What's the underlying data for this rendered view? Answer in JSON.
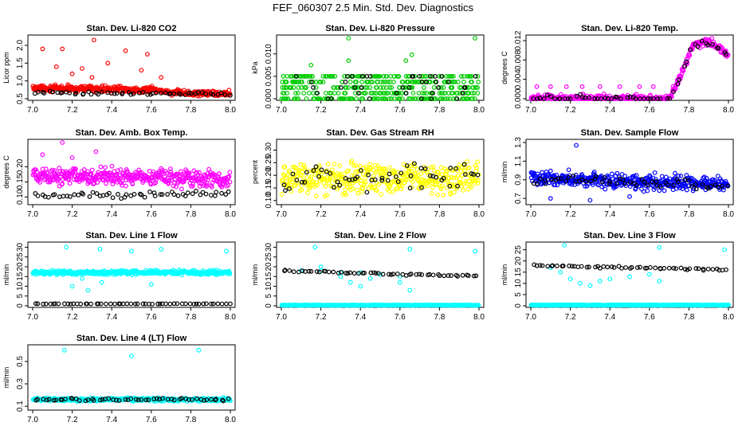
{
  "page_title": "FEF_060307  2.5 Min. Std. Dev. Diagnostics",
  "colors": {
    "red": "#ff0000",
    "green": "#00cc00",
    "magenta": "#ff00ff",
    "yellow": "#ffff00",
    "blue": "#0000ff",
    "cyan": "#00ffff",
    "black": "#000000"
  },
  "chart_data": [
    {
      "type": "scatter",
      "title": "Stan. Dev. Li-820 CO2",
      "ylabel": "Licor ppm",
      "xlim": [
        7.0,
        8.0
      ],
      "ylim": [
        0.5,
        2.2
      ],
      "x_ticks": [
        "7.0",
        "7.2",
        "7.4",
        "7.6",
        "7.8",
        "8.0"
      ],
      "y_ticks": [
        {
          "v": 0.5,
          "label": "0.5"
        },
        {
          "v": 1.0,
          "label": "1.0"
        },
        {
          "v": 1.5,
          "label": "1.5"
        },
        {
          "v": 2.0,
          "label": "2.0"
        }
      ],
      "series": [
        {
          "name": "color",
          "color": "#ff0000",
          "profile": [
            [
              7.0,
              0.8
            ],
            [
              7.6,
              0.75
            ],
            [
              7.75,
              0.65
            ],
            [
              8.0,
              0.65
            ]
          ],
          "spread": 0.12,
          "outliers": [
            [
              7.05,
              1.9
            ],
            [
              7.15,
              1.9
            ],
            [
              7.31,
              2.15
            ],
            [
              7.47,
              1.85
            ],
            [
              7.58,
              1.75
            ],
            [
              7.25,
              1.35
            ],
            [
              7.38,
              1.5
            ],
            [
              7.2,
              1.2
            ],
            [
              7.12,
              1.4
            ],
            [
              7.55,
              1.3
            ],
            [
              7.3,
              1.1
            ],
            [
              7.65,
              1.1
            ]
          ]
        },
        {
          "name": "black",
          "color": "#000000",
          "profile": [
            [
              7.0,
              0.68
            ],
            [
              8.0,
              0.62
            ]
          ],
          "spread": 0.06
        }
      ]
    },
    {
      "type": "scatter",
      "title": "Stan. Dev. Li-820 Pressure",
      "ylabel": "kPa",
      "xlim": [
        7.0,
        8.0
      ],
      "ylim": [
        0.0,
        0.0135
      ],
      "x_ticks": [
        "7.0",
        "7.2",
        "7.4",
        "7.6",
        "7.8",
        "8.0"
      ],
      "y_ticks": [
        {
          "v": 0.0,
          "label": "0.000"
        },
        {
          "v": 0.005,
          "label": "0.005"
        },
        {
          "v": 0.01,
          "label": "0.010"
        }
      ],
      "series": [
        {
          "name": "color",
          "color": "#00cc00",
          "levels": [
            0.0,
            0.00125,
            0.0025,
            0.00375,
            0.005
          ],
          "outliers": [
            [
              7.34,
              0.0135
            ],
            [
              7.98,
              0.0135
            ],
            [
              7.34,
              0.0085
            ],
            [
              7.66,
              0.0098
            ],
            [
              7.63,
              0.0085
            ],
            [
              7.15,
              0.0075
            ]
          ]
        },
        {
          "name": "black",
          "color": "#000000",
          "levels": [
            0.0,
            0.00125,
            0.0025,
            0.00375,
            0.005
          ],
          "count": 40
        }
      ]
    },
    {
      "type": "scatter",
      "title": "Stan. Dev. Li-820 Temp.",
      "ylabel": "degrees C",
      "xlim": [
        7.0,
        8.0
      ],
      "ylim": [
        0.0,
        0.0125
      ],
      "x_ticks": [
        "7.0",
        "7.2",
        "7.4",
        "7.6",
        "7.8",
        "8.0"
      ],
      "y_ticks": [
        {
          "v": 0.0,
          "label": "0.000"
        },
        {
          "v": 0.004,
          "label": "0.004"
        },
        {
          "v": 0.008,
          "label": "0.008"
        },
        {
          "v": 0.012,
          "label": "0.012"
        }
      ],
      "series": [
        {
          "name": "color",
          "color": "#ff00ff",
          "profile": [
            [
              7.0,
              0.0
            ],
            [
              7.7,
              0.0
            ],
            [
              7.75,
              0.004
            ],
            [
              7.82,
              0.011
            ],
            [
              7.9,
              0.012
            ],
            [
              8.0,
              0.009
            ]
          ],
          "spread": 0.0012,
          "outliers": [
            [
              7.03,
              0.0025
            ],
            [
              7.1,
              0.0025
            ],
            [
              7.18,
              0.0025
            ],
            [
              7.26,
              0.0025
            ],
            [
              7.35,
              0.0025
            ],
            [
              7.45,
              0.0025
            ],
            [
              7.55,
              0.0025
            ],
            [
              7.62,
              0.0025
            ]
          ]
        },
        {
          "name": "black",
          "color": "#000000",
          "profile": [
            [
              7.0,
              0.0
            ],
            [
              7.7,
              0.0
            ],
            [
              7.75,
              0.004
            ],
            [
              7.82,
              0.011
            ],
            [
              7.9,
              0.012
            ],
            [
              8.0,
              0.0085
            ]
          ],
          "spread": 0.0012
        }
      ]
    },
    {
      "type": "scatter",
      "title": "Stan. Dev. Amb. Box Temp.",
      "ylabel": "degrees C",
      "xlim": [
        7.0,
        8.0
      ],
      "ylim": [
        0.08,
        0.28
      ],
      "x_ticks": [
        "7.0",
        "7.2",
        "7.4",
        "7.6",
        "7.8",
        "8.0"
      ],
      "y_ticks": [
        {
          "v": 0.1,
          "label": "0.10"
        },
        {
          "v": 0.15,
          "label": "0.15"
        },
        {
          "v": 0.2,
          "label": "0.20"
        }
      ],
      "series": [
        {
          "name": "color",
          "color": "#ff00ff",
          "profile": [
            [
              7.0,
              0.17
            ],
            [
              8.0,
              0.16
            ]
          ],
          "spread": 0.04,
          "outliers": [
            [
              7.15,
              0.28
            ],
            [
              7.05,
              0.24
            ],
            [
              7.32,
              0.25
            ],
            [
              7.2,
              0.23
            ]
          ]
        },
        {
          "name": "black",
          "color": "#000000",
          "profile": [
            [
              7.0,
              0.105
            ],
            [
              8.0,
              0.11
            ]
          ],
          "spread": 0.015
        }
      ]
    },
    {
      "type": "scatter",
      "title": "Stan. Dev. Gas Stream RH",
      "ylabel": "percent",
      "xlim": [
        7.0,
        8.0
      ],
      "ylim": [
        0.09,
        0.33
      ],
      "x_ticks": [
        "7.0",
        "7.2",
        "7.4",
        "7.6",
        "7.8",
        "8.0"
      ],
      "y_ticks": [
        {
          "v": 0.1,
          "label": "0.10"
        },
        {
          "v": 0.15,
          "label": "0.15"
        },
        {
          "v": 0.2,
          "label": "0.20"
        },
        {
          "v": 0.25,
          "label": "0.25"
        },
        {
          "v": 0.3,
          "label": "0.30"
        }
      ],
      "series": [
        {
          "name": "color",
          "color": "#ffff00",
          "profile": [
            [
              7.0,
              0.19
            ],
            [
              8.0,
              0.19
            ]
          ],
          "spread": 0.09
        },
        {
          "name": "black",
          "color": "#000000",
          "profile": [
            [
              7.0,
              0.19
            ],
            [
              8.0,
              0.19
            ]
          ],
          "spread": 0.08
        }
      ]
    },
    {
      "type": "scatter",
      "title": "Stan. Dev. Sample Flow",
      "ylabel": "ml/min",
      "xlim": [
        7.0,
        8.0
      ],
      "ylim": [
        0.65,
        1.3
      ],
      "x_ticks": [
        "7.0",
        "7.2",
        "7.4",
        "7.6",
        "7.8",
        "8.0"
      ],
      "y_ticks": [
        {
          "v": 0.7,
          "label": "0.7"
        },
        {
          "v": 0.9,
          "label": "0.9"
        },
        {
          "v": 1.1,
          "label": "1.1"
        },
        {
          "v": 1.3,
          "label": "1.3"
        }
      ],
      "series": [
        {
          "name": "color",
          "color": "#0000ff",
          "profile": [
            [
              7.0,
              0.92
            ],
            [
              8.0,
              0.85
            ]
          ],
          "spread": 0.12,
          "outliers": [
            [
              7.23,
              1.27
            ],
            [
              7.1,
              0.7
            ],
            [
              7.3,
              0.68
            ],
            [
              7.5,
              0.72
            ]
          ]
        },
        {
          "name": "black",
          "color": "#000000",
          "profile": [
            [
              7.0,
              0.9
            ],
            [
              8.0,
              0.85
            ]
          ],
          "spread": 0.08
        }
      ]
    },
    {
      "type": "scatter",
      "title": "Stan. Dev. Line 1 Flow",
      "ylabel": "ml/min",
      "xlim": [
        7.0,
        8.0
      ],
      "ylim": [
        0.0,
        31.0
      ],
      "x_ticks": [
        "7.0",
        "7.2",
        "7.4",
        "7.6",
        "7.8",
        "8.0"
      ],
      "y_ticks": [
        {
          "v": 0,
          "label": "0"
        },
        {
          "v": 5,
          "label": "5"
        },
        {
          "v": 10,
          "label": "10"
        },
        {
          "v": 15,
          "label": "15"
        },
        {
          "v": 20,
          "label": "20"
        },
        {
          "v": 25,
          "label": "25"
        },
        {
          "v": 30,
          "label": "30"
        }
      ],
      "series": [
        {
          "name": "color",
          "color": "#00ffff",
          "profile": [
            [
              7.0,
              17
            ],
            [
              8.0,
              17
            ]
          ],
          "spread": 1.5,
          "outliers": [
            [
              7.17,
              30
            ],
            [
              7.34,
              29
            ],
            [
              7.5,
              28
            ],
            [
              7.65,
              29
            ],
            [
              7.98,
              28
            ],
            [
              7.2,
              10
            ],
            [
              7.28,
              8
            ],
            [
              7.35,
              12
            ],
            [
              7.6,
              11
            ],
            [
              7.25,
              14
            ]
          ]
        },
        {
          "name": "black",
          "color": "#000000",
          "profile": [
            [
              7.0,
              1
            ],
            [
              8.0,
              1
            ]
          ],
          "spread": 0.2
        }
      ]
    },
    {
      "type": "scatter",
      "title": "Stan. Dev. Line 2 Flow",
      "ylabel": "ml/min",
      "xlim": [
        7.0,
        8.0
      ],
      "ylim": [
        0.0,
        31.0
      ],
      "x_ticks": [
        "7.0",
        "7.2",
        "7.4",
        "7.6",
        "7.8",
        "8.0"
      ],
      "y_ticks": [
        {
          "v": 0,
          "label": "0"
        },
        {
          "v": 5,
          "label": "5"
        },
        {
          "v": 10,
          "label": "10"
        },
        {
          "v": 15,
          "label": "15"
        },
        {
          "v": 20,
          "label": "20"
        },
        {
          "v": 25,
          "label": "25"
        },
        {
          "v": 30,
          "label": "30"
        }
      ],
      "series": [
        {
          "name": "color",
          "color": "#00ffff",
          "profile": [
            [
              7.0,
              0.3
            ],
            [
              8.0,
              0.3
            ]
          ],
          "spread": 0.2,
          "outliers": [
            [
              7.17,
              30
            ],
            [
              7.65,
              29
            ],
            [
              7.98,
              28
            ],
            [
              7.2,
              20
            ],
            [
              7.35,
              12
            ],
            [
              7.4,
              10
            ],
            [
              7.6,
              12
            ],
            [
              7.65,
              8
            ],
            [
              7.3,
              15
            ],
            [
              7.45,
              14
            ],
            [
              7.1,
              18
            ],
            [
              7.2,
              18
            ],
            [
              7.3,
              17
            ],
            [
              7.4,
              17
            ],
            [
              7.5,
              16
            ],
            [
              7.6,
              15
            ]
          ]
        },
        {
          "name": "black",
          "color": "#000000",
          "profile": [
            [
              7.0,
              18
            ],
            [
              8.0,
              15
            ]
          ],
          "spread": 0.8
        }
      ]
    },
    {
      "type": "scatter",
      "title": "Stan. Dev. Line 3 Flow",
      "ylabel": "ml/min",
      "xlim": [
        7.0,
        8.0
      ],
      "ylim": [
        0.0,
        27.0
      ],
      "x_ticks": [
        "7.0",
        "7.2",
        "7.4",
        "7.6",
        "7.8",
        "8.0"
      ],
      "y_ticks": [
        {
          "v": 0,
          "label": "0"
        },
        {
          "v": 5,
          "label": "5"
        },
        {
          "v": 10,
          "label": "10"
        },
        {
          "v": 15,
          "label": "15"
        },
        {
          "v": 20,
          "label": "20"
        },
        {
          "v": 25,
          "label": "25"
        }
      ],
      "series": [
        {
          "name": "color",
          "color": "#00ffff",
          "profile": [
            [
              7.0,
              0.3
            ],
            [
              8.0,
              0.3
            ]
          ],
          "spread": 0.2,
          "outliers": [
            [
              7.17,
              27
            ],
            [
              7.65,
              26
            ],
            [
              7.98,
              25
            ],
            [
              7.1,
              17
            ],
            [
              7.15,
              15
            ],
            [
              7.2,
              12
            ],
            [
              7.25,
              10
            ],
            [
              7.3,
              9
            ],
            [
              7.35,
              11
            ],
            [
              7.4,
              12
            ],
            [
              7.5,
              13
            ],
            [
              7.6,
              14
            ],
            [
              7.65,
              11
            ]
          ]
        },
        {
          "name": "black",
          "color": "#000000",
          "profile": [
            [
              7.0,
              18
            ],
            [
              8.0,
              16
            ]
          ],
          "spread": 0.8
        }
      ]
    },
    {
      "type": "scatter",
      "title": "Stan. Dev. Line 4 (LT) Flow",
      "ylabel": "ml/min",
      "xlim": [
        7.0,
        8.0
      ],
      "ylim": [
        0.08,
        0.62
      ],
      "x_ticks": [
        "7.0",
        "7.2",
        "7.4",
        "7.6",
        "7.8",
        "8.0"
      ],
      "y_ticks": [
        {
          "v": 0.1,
          "label": "0.1"
        },
        {
          "v": 0.3,
          "label": "0.3"
        },
        {
          "v": 0.5,
          "label": "0.5"
        }
      ],
      "series": [
        {
          "name": "color",
          "color": "#00ffff",
          "profile": [
            [
              7.0,
              0.16
            ],
            [
              8.0,
              0.16
            ]
          ],
          "spread": 0.02,
          "outliers": [
            [
              7.16,
              0.6
            ],
            [
              7.5,
              0.55
            ],
            [
              7.84,
              0.6
            ]
          ]
        },
        {
          "name": "black",
          "color": "#000000",
          "profile": [
            [
              7.0,
              0.16
            ],
            [
              8.0,
              0.16
            ]
          ],
          "spread": 0.02
        }
      ]
    }
  ]
}
